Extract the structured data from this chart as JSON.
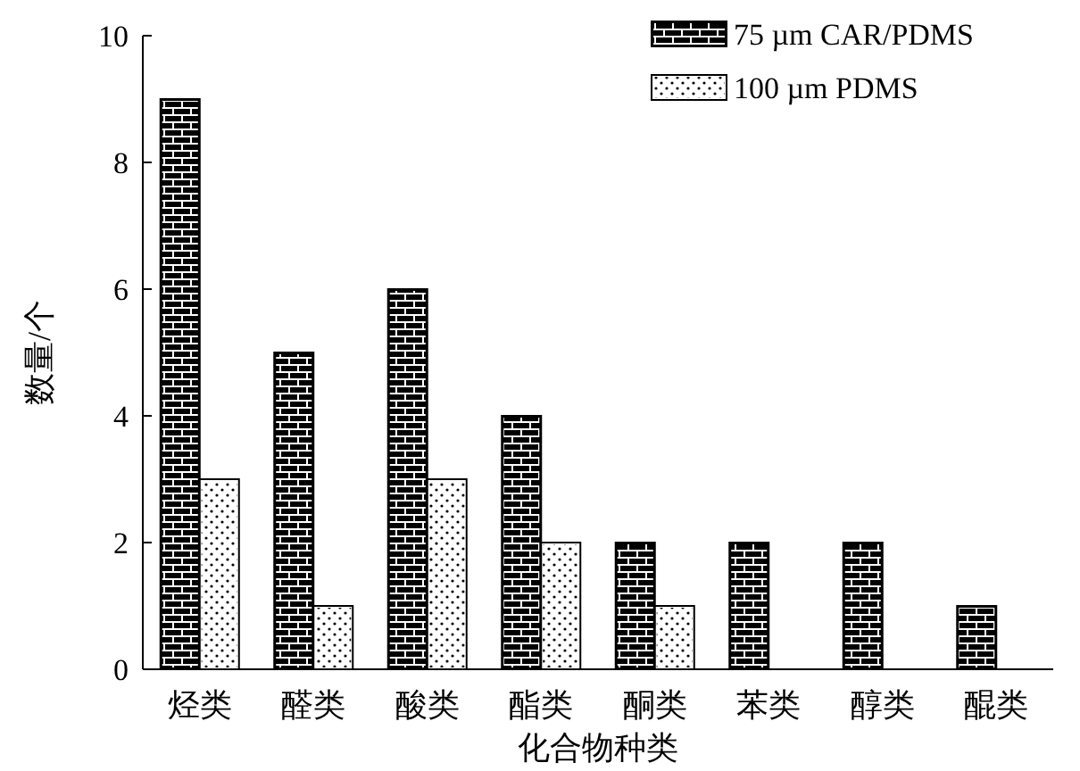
{
  "chart_data": {
    "type": "bar",
    "xlabel": "化合物种类",
    "ylabel": "数量/个",
    "categories": [
      "烃类",
      "醛类",
      "酸类",
      "酯类",
      "酮类",
      "苯类",
      "醇类",
      "醌类"
    ],
    "series": [
      {
        "name": "75 µm CAR/PDMS",
        "color": "#000000",
        "values": [
          9,
          5,
          6,
          4,
          2,
          2,
          2,
          1
        ]
      },
      {
        "name": "100 µm PDMS",
        "color": "#ffffff",
        "values": [
          3,
          1,
          3,
          2,
          1,
          0,
          0,
          0
        ]
      }
    ],
    "ylim": [
      0,
      10
    ],
    "yticks": [
      0,
      2,
      4,
      6,
      8,
      10
    ],
    "grid": false,
    "legend": "top right"
  }
}
